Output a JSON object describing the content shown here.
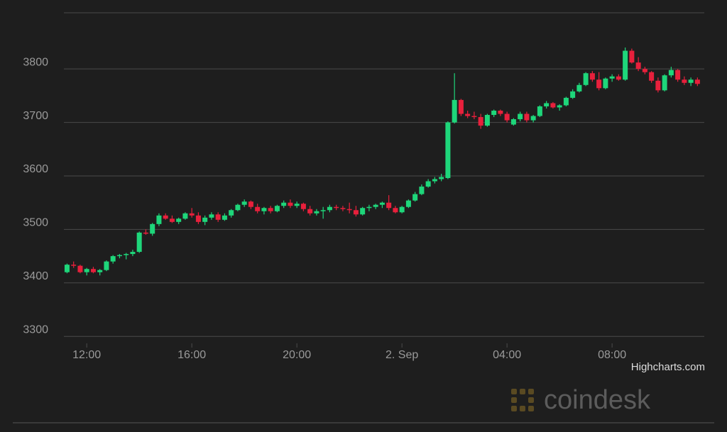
{
  "chart_data": {
    "type": "candlestick",
    "x": [
      11.25,
      11.5,
      11.75,
      12,
      12.25,
      12.5,
      12.75,
      13,
      13.25,
      13.5,
      13.75,
      14,
      14.25,
      14.5,
      14.75,
      15,
      15.25,
      15.5,
      15.75,
      16,
      16.25,
      16.5,
      16.75,
      17,
      17.25,
      17.5,
      17.75,
      18,
      18.25,
      18.5,
      18.75,
      19,
      19.25,
      19.5,
      19.75,
      20,
      20.25,
      20.5,
      20.75,
      21,
      21.25,
      21.5,
      21.75,
      22,
      22.25,
      22.5,
      22.75,
      23,
      23.25,
      23.5,
      23.75,
      24,
      24.25,
      24.5,
      24.75,
      25,
      25.25,
      25.5,
      25.75,
      26,
      26.25,
      26.5,
      26.75,
      27,
      27.25,
      27.5,
      27.75,
      28,
      28.25,
      28.5,
      28.75,
      29,
      29.25,
      29.5,
      29.75,
      30,
      30.25,
      30.5,
      30.75,
      31,
      31.25,
      31.5,
      31.75,
      32,
      32.25,
      32.5,
      32.75,
      33,
      33.25,
      33.5,
      33.75,
      34,
      34.25,
      34.5,
      34.75,
      35,
      35.25
    ],
    "open": [
      3420,
      3434,
      3432,
      3420,
      3426,
      3420,
      3424,
      3440,
      3450,
      3452,
      3454,
      3458,
      3494,
      3492,
      3510,
      3526,
      3520,
      3514,
      3520,
      3530,
      3526,
      3514,
      3522,
      3528,
      3518,
      3526,
      3536,
      3546,
      3552,
      3542,
      3534,
      3540,
      3534,
      3544,
      3550,
      3544,
      3548,
      3538,
      3530,
      3534,
      3536,
      3542,
      3540,
      3538,
      3536,
      3528,
      3540,
      3542,
      3546,
      3550,
      3540,
      3532,
      3542,
      3554,
      3566,
      3580,
      3590,
      3594,
      3596,
      3700,
      3742,
      3716,
      3712,
      3710,
      3694,
      3714,
      3722,
      3716,
      3696,
      3706,
      3716,
      3704,
      3712,
      3730,
      3736,
      3728,
      3732,
      3746,
      3758,
      3770,
      3792,
      3780,
      3764,
      3782,
      3786,
      3780,
      3834,
      3812,
      3800,
      3794,
      3778,
      3760,
      3788,
      3798,
      3780,
      3774,
      3780
    ],
    "high": [
      3436,
      3440,
      3434,
      3428,
      3430,
      3426,
      3442,
      3452,
      3454,
      3456,
      3462,
      3496,
      3500,
      3512,
      3530,
      3530,
      3526,
      3522,
      3532,
      3540,
      3532,
      3526,
      3532,
      3532,
      3530,
      3538,
      3548,
      3556,
      3554,
      3548,
      3542,
      3544,
      3546,
      3554,
      3556,
      3552,
      3550,
      3544,
      3538,
      3542,
      3546,
      3546,
      3544,
      3550,
      3544,
      3542,
      3546,
      3548,
      3552,
      3564,
      3544,
      3544,
      3556,
      3570,
      3584,
      3594,
      3598,
      3604,
      3702,
      3792,
      3744,
      3722,
      3720,
      3716,
      3716,
      3724,
      3724,
      3720,
      3708,
      3720,
      3720,
      3714,
      3732,
      3740,
      3738,
      3734,
      3748,
      3762,
      3774,
      3794,
      3796,
      3794,
      3784,
      3790,
      3790,
      3840,
      3838,
      3822,
      3804,
      3796,
      3784,
      3790,
      3804,
      3800,
      3786,
      3784,
      3784
    ],
    "low": [
      3418,
      3428,
      3418,
      3414,
      3418,
      3414,
      3422,
      3436,
      3446,
      3444,
      3450,
      3456,
      3490,
      3488,
      3506,
      3518,
      3512,
      3510,
      3518,
      3522,
      3510,
      3508,
      3518,
      3514,
      3516,
      3522,
      3534,
      3542,
      3538,
      3530,
      3528,
      3530,
      3532,
      3540,
      3540,
      3540,
      3534,
      3526,
      3526,
      3520,
      3532,
      3536,
      3534,
      3530,
      3524,
      3526,
      3534,
      3538,
      3540,
      3536,
      3530,
      3530,
      3540,
      3552,
      3564,
      3578,
      3586,
      3590,
      3594,
      3698,
      3712,
      3708,
      3706,
      3688,
      3692,
      3710,
      3712,
      3700,
      3694,
      3702,
      3700,
      3700,
      3710,
      3726,
      3726,
      3722,
      3730,
      3744,
      3756,
      3768,
      3776,
      3760,
      3762,
      3776,
      3778,
      3778,
      3810,
      3796,
      3790,
      3774,
      3756,
      3758,
      3784,
      3776,
      3770,
      3768,
      3768
    ],
    "close": [
      3434,
      3432,
      3420,
      3426,
      3420,
      3424,
      3440,
      3450,
      3452,
      3454,
      3458,
      3494,
      3492,
      3510,
      3526,
      3520,
      3514,
      3520,
      3530,
      3526,
      3514,
      3522,
      3528,
      3518,
      3526,
      3536,
      3546,
      3552,
      3542,
      3534,
      3540,
      3534,
      3544,
      3550,
      3544,
      3548,
      3538,
      3530,
      3534,
      3536,
      3542,
      3540,
      3538,
      3536,
      3528,
      3540,
      3542,
      3546,
      3550,
      3540,
      3532,
      3542,
      3554,
      3566,
      3580,
      3590,
      3594,
      3598,
      3700,
      3742,
      3716,
      3712,
      3710,
      3694,
      3714,
      3722,
      3716,
      3704,
      3706,
      3716,
      3704,
      3712,
      3730,
      3736,
      3728,
      3732,
      3746,
      3758,
      3770,
      3792,
      3780,
      3764,
      3782,
      3786,
      3780,
      3834,
      3812,
      3800,
      3794,
      3778,
      3760,
      3788,
      3798,
      3780,
      3774,
      3780,
      3772
    ],
    "up_color": "#1ed67a",
    "down_color": "#e8203c",
    "xlim": [
      11.13,
      35.51
    ],
    "xticks": [
      {
        "value": 12,
        "label": "12:00"
      },
      {
        "value": 16,
        "label": "16:00"
      },
      {
        "value": 20,
        "label": "20:00"
      },
      {
        "value": 24,
        "label": "2. Sep"
      },
      {
        "value": 28,
        "label": "04:00"
      },
      {
        "value": 32,
        "label": "08:00"
      }
    ],
    "ylim": [
      3287,
      3905
    ],
    "yticks": [
      3300,
      3400,
      3500,
      3600,
      3700,
      3800
    ],
    "grid": true,
    "credits": "Highcharts.com",
    "watermark": "coindesk"
  }
}
